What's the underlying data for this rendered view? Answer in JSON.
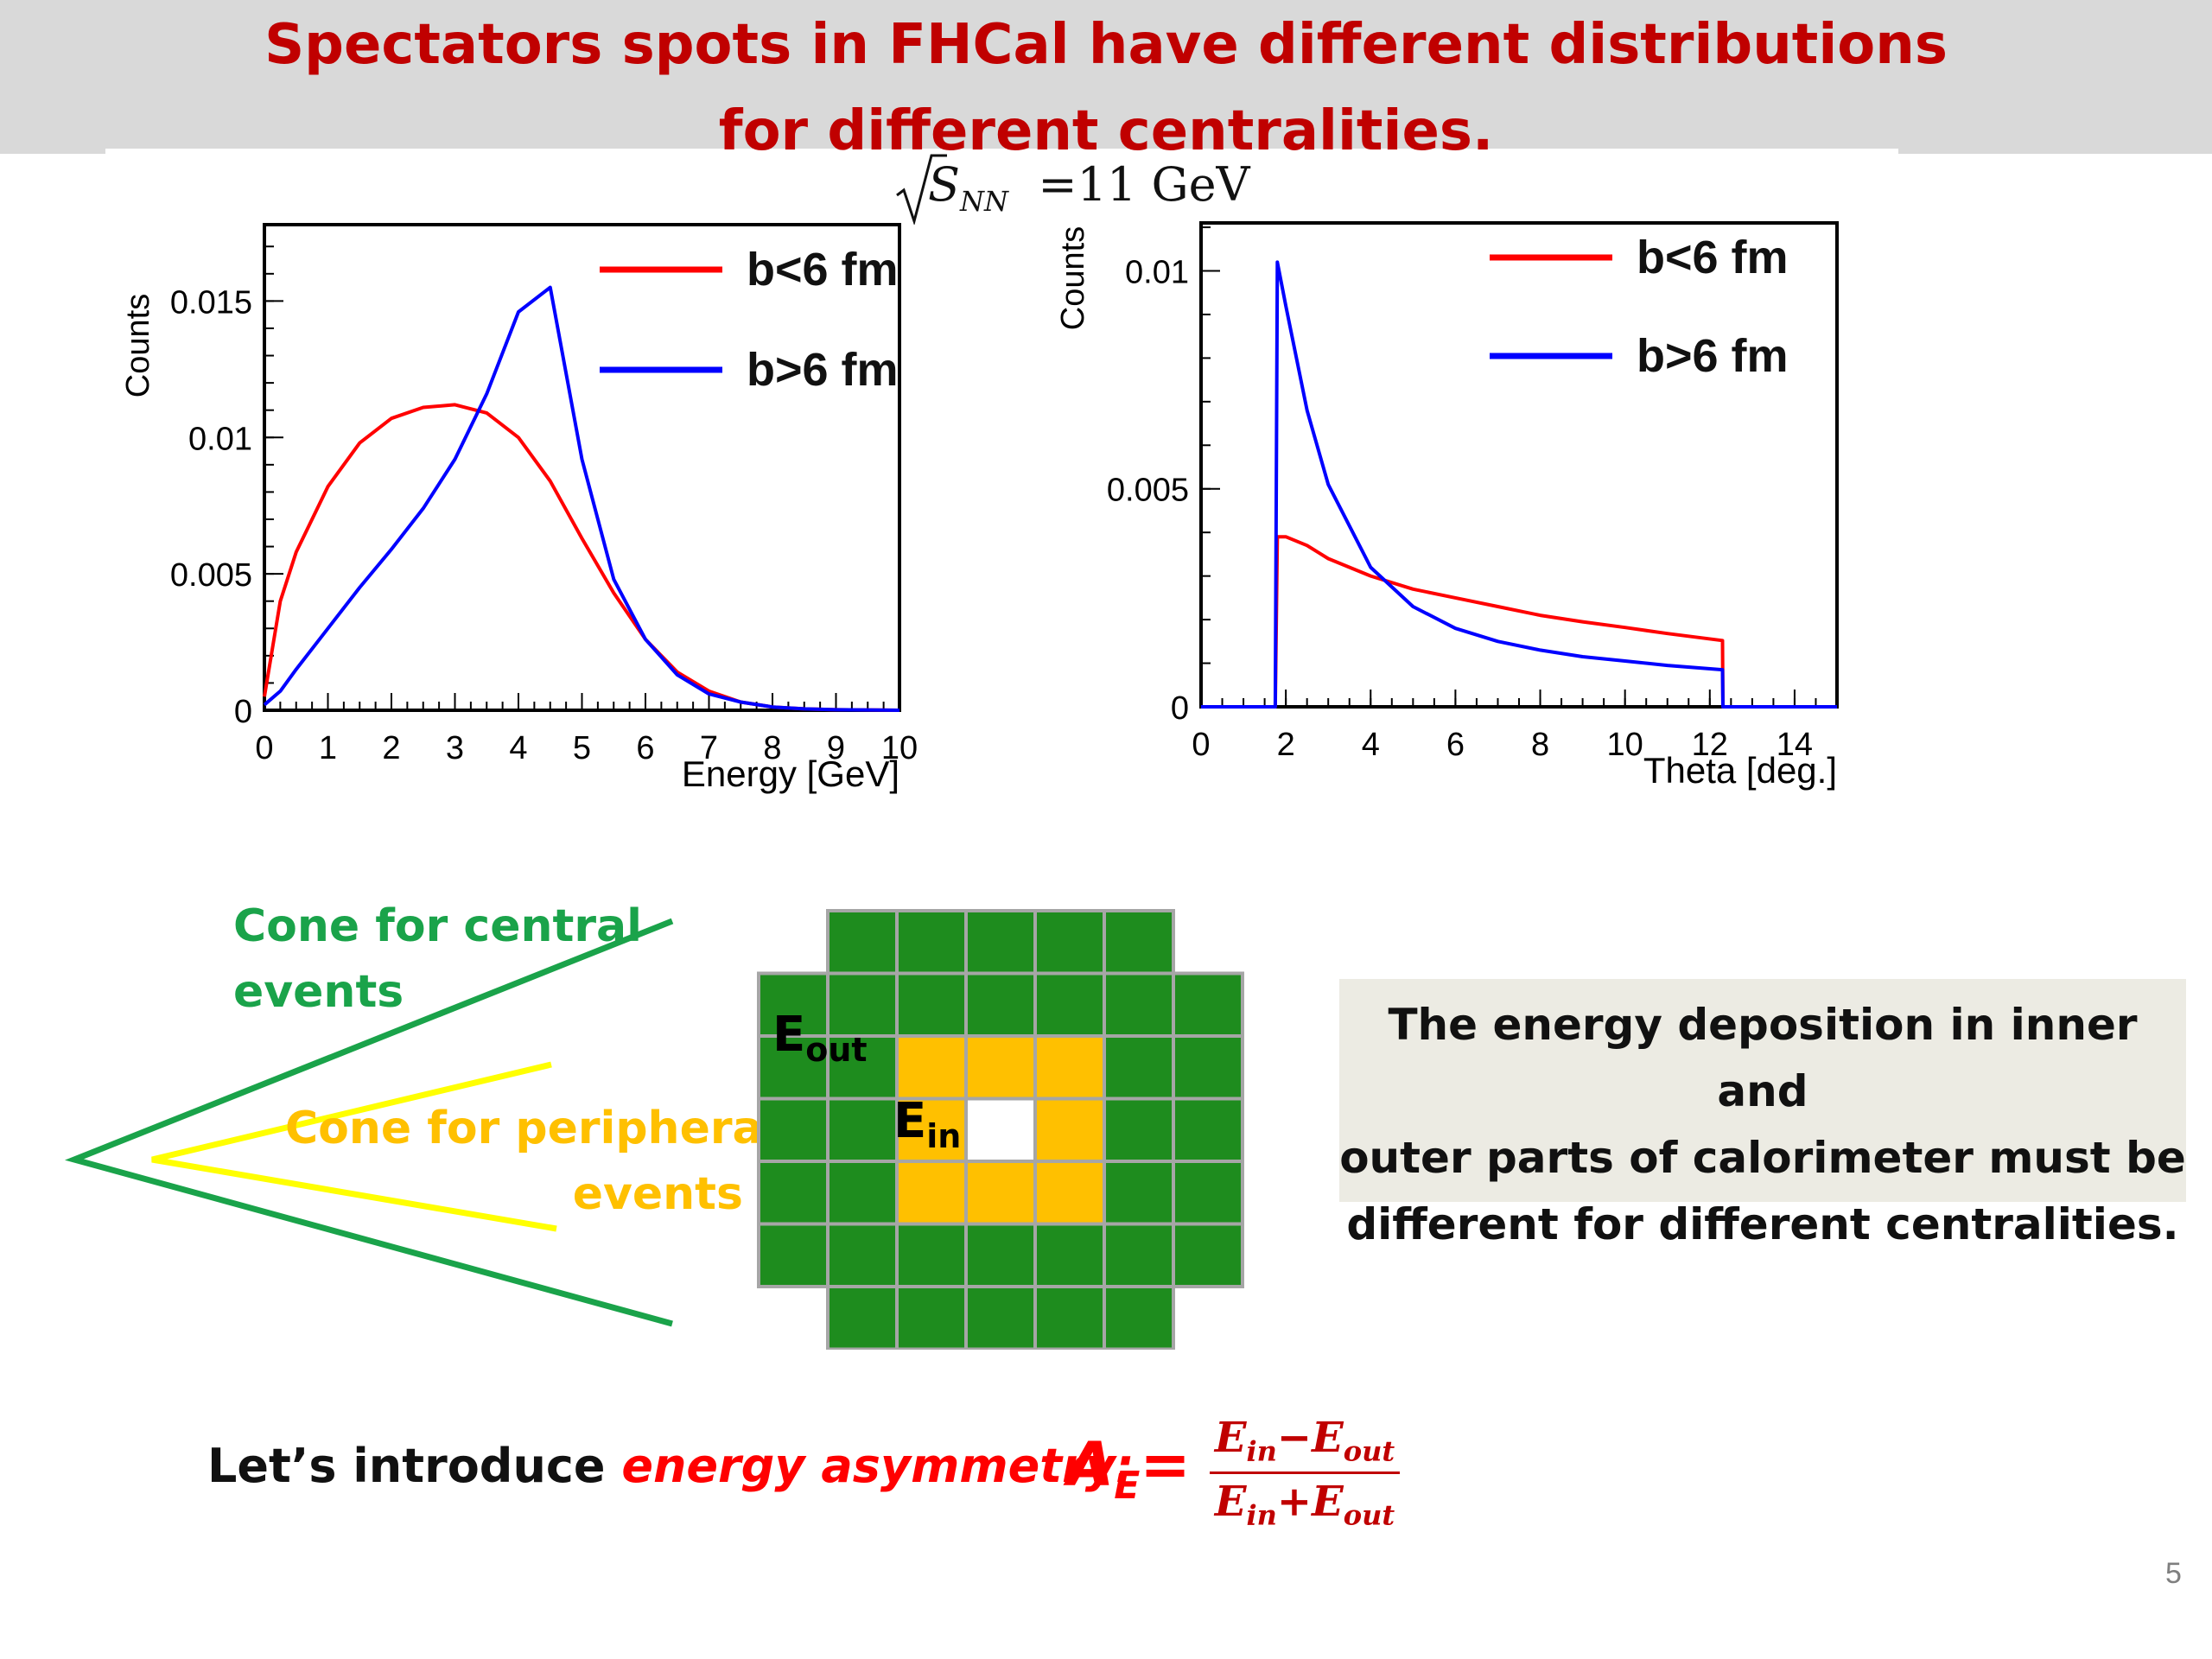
{
  "title": {
    "line1": "Spectators spots in FHCal  have different distributions",
    "line2": "for different centralities."
  },
  "energy_label": {
    "symbol": "S",
    "subscript": "NN",
    "value": "=11 GeV"
  },
  "colors": {
    "title": "#c00000",
    "red_series": "#ff0000",
    "blue_series": "#0000ff",
    "green": "#1aa34a",
    "yellow": "#ffff00",
    "orange": "#ffc000",
    "module_green": "#1e8c1e"
  },
  "chart_data": [
    {
      "type": "line",
      "xlabel": "Energy [GeV]",
      "ylabel": "Counts",
      "xlim": [
        0,
        10
      ],
      "ylim": [
        0,
        0.0178
      ],
      "x_ticks": [
        "0",
        "1",
        "2",
        "3",
        "4",
        "5",
        "6",
        "7",
        "8",
        "9",
        "10"
      ],
      "y_ticks": [
        "0",
        "0.005",
        "0.01",
        "0.015"
      ],
      "x": [
        0,
        0.25,
        0.5,
        1,
        1.5,
        2,
        2.5,
        3,
        3.5,
        4,
        4.5,
        5,
        5.5,
        6,
        6.5,
        7,
        7.5,
        8,
        8.5,
        9,
        10
      ],
      "series": [
        {
          "name": "b<6 fm",
          "color": "#ff0000",
          "values": [
            0.0005,
            0.004,
            0.0058,
            0.0082,
            0.0098,
            0.0107,
            0.0111,
            0.0112,
            0.0109,
            0.01,
            0.0084,
            0.0063,
            0.0043,
            0.0026,
            0.0014,
            0.0007,
            0.0003,
            0.00012,
            5e-05,
            2e-05,
            0.0
          ]
        },
        {
          "name": "b>6 fm",
          "color": "#0000ff",
          "values": [
            0.0002,
            0.0007,
            0.0015,
            0.003,
            0.0045,
            0.0059,
            0.0074,
            0.0092,
            0.0116,
            0.0146,
            0.0155,
            0.0092,
            0.0048,
            0.0026,
            0.0013,
            0.0006,
            0.0003,
            0.00012,
            5e-05,
            2e-05,
            0.0
          ]
        }
      ]
    },
    {
      "type": "line",
      "xlabel": "Theta [deg.]",
      "ylabel": "Counts",
      "xlim": [
        0,
        15
      ],
      "ylim": [
        0,
        0.0111
      ],
      "x_ticks": [
        "0",
        "2",
        "4",
        "6",
        "8",
        "10",
        "12",
        "14"
      ],
      "y_ticks": [
        "0",
        "0.005",
        "0.01"
      ],
      "x": [
        0,
        1.75,
        1.8,
        2,
        2.5,
        3,
        4,
        5,
        6,
        7,
        8,
        9,
        10,
        11,
        12.3,
        12.31,
        15
      ],
      "series": [
        {
          "name": "b<6 fm",
          "color": "#ff0000",
          "values": [
            0,
            0,
            0.0039,
            0.0039,
            0.0037,
            0.0034,
            0.003,
            0.0027,
            0.0025,
            0.0023,
            0.0021,
            0.00195,
            0.00182,
            0.00168,
            0.00152,
            0,
            0
          ]
        },
        {
          "name": "b>6 fm",
          "color": "#0000ff",
          "values": [
            0,
            0,
            0.0102,
            0.0092,
            0.0068,
            0.0051,
            0.0032,
            0.0023,
            0.0018,
            0.0015,
            0.0013,
            0.00115,
            0.00105,
            0.00095,
            0.00085,
            0,
            0
          ]
        }
      ]
    }
  ],
  "diagram": {
    "cone_central": [
      "Cone for central",
      "events"
    ],
    "cone_peripheral": [
      "Cone for peripheral",
      "events"
    ],
    "e_out": {
      "main": "E",
      "sub": "out"
    },
    "e_in": {
      "main": "E",
      "sub": "in"
    }
  },
  "note": [
    "The energy deposition in inner and",
    "outer parts of calorimeter must be",
    "different for different centralities."
  ],
  "formula": {
    "intro": "Let’s introduce ",
    "emph": "energy asymmetry:",
    "lhs": "A",
    "lhs_sub": "E",
    "eq": "=",
    "num": [
      "E",
      "in",
      "−E",
      "out"
    ],
    "den": [
      "E",
      "in",
      "+E",
      "out"
    ]
  },
  "page_number": "5"
}
